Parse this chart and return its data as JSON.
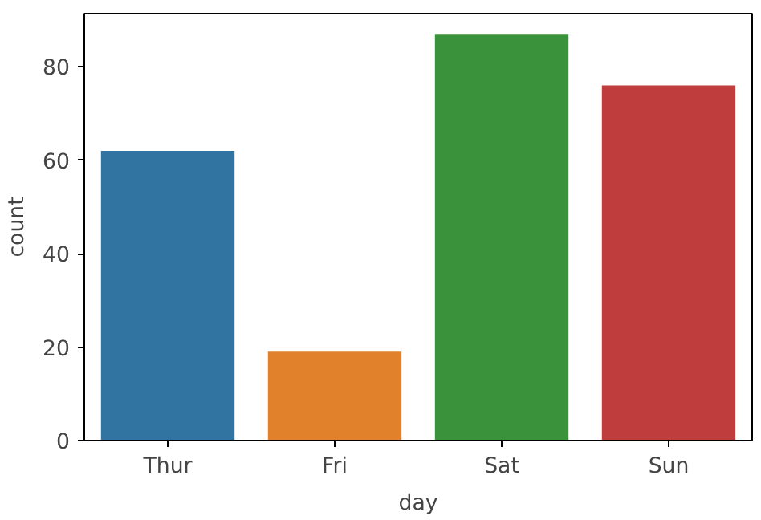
{
  "chart_data": {
    "type": "bar",
    "xlabel": "day",
    "ylabel": "count",
    "categories": [
      "Thur",
      "Fri",
      "Sat",
      "Sun"
    ],
    "values": [
      62,
      19,
      87,
      76
    ],
    "colors": [
      "#3274a1",
      "#e1812c",
      "#3a923a",
      "#c03d3e"
    ],
    "ylim": [
      0,
      91.35
    ],
    "yticks": [
      0,
      20,
      40,
      60,
      80
    ],
    "grid": false
  }
}
